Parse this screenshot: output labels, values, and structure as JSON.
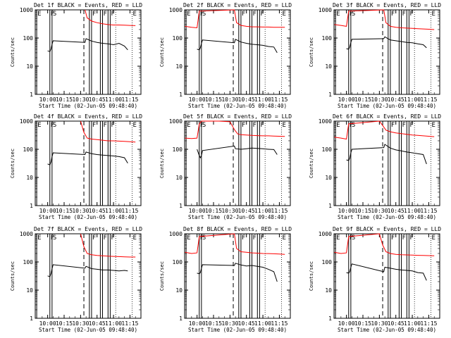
{
  "colors": {
    "background": "#ffffff",
    "axes": "#000000",
    "events": "#000000",
    "lld": "#ff0000"
  },
  "chart_data": [
    {
      "type": "line",
      "title": "Det 1f BLACK = Events, RED = LLD",
      "xlabel": "Start Time (02-Jun-05 09:48:40)",
      "ylabel": "Counts/sec",
      "x_tick_labels": [
        "10:00",
        "10:15",
        "10:30",
        "10:45",
        "11:00",
        "11:15"
      ],
      "y_tick_labels": [
        "1000",
        "100",
        "10",
        "1"
      ],
      "y_scale": "log",
      "ylim": [
        1,
        1000
      ],
      "xlim": [
        "09:48:40",
        "11:25"
      ],
      "series": [
        {
          "name": "Events",
          "x": [
            "10:00",
            "10:02",
            "10:03",
            "10:04",
            "10:05",
            "10:34",
            "10:35",
            "10:40",
            "10:45",
            "10:50",
            "10:55",
            "11:00",
            "11:05",
            "11:10",
            "11:13"
          ],
          "values": [
            35,
            33,
            40,
            60,
            80,
            70,
            95,
            78,
            70,
            65,
            62,
            58,
            65,
            52,
            38
          ]
        },
        {
          "name": "LLD",
          "x": [
            "10:34",
            "10:36",
            "10:40",
            "10:45",
            "10:50",
            "10:55",
            "11:00",
            "11:05",
            "11:10",
            "11:15",
            "11:20"
          ],
          "values": [
            1000,
            520,
            400,
            350,
            320,
            300,
            290,
            290,
            285,
            280,
            275
          ]
        }
      ],
      "markers": [
        "E",
        "F",
        "S",
        "F",
        "F",
        "F",
        "E"
      ]
    },
    {
      "type": "line",
      "title": "Det 2f BLACK = Events, RED = LLD",
      "xlabel": "Start Time (02-Jun-05 09:48:40)",
      "ylabel": "Counts/sec",
      "x_tick_labels": [
        "10:00",
        "10:15",
        "10:30",
        "10:45",
        "11:00",
        "11:15"
      ],
      "y_tick_labels": [
        "1000",
        "100",
        "10",
        "1"
      ],
      "y_scale": "log",
      "ylim": [
        1,
        1000
      ],
      "xlim": [
        "09:48:40",
        "11:25"
      ],
      "series": [
        {
          "name": "Events",
          "x": [
            "10:00",
            "10:02",
            "10:03",
            "10:04",
            "10:05",
            "10:34",
            "10:35",
            "10:40",
            "10:45",
            "10:50",
            "10:55",
            "11:00",
            "11:05",
            "11:10",
            "11:13"
          ],
          "values": [
            40,
            38,
            45,
            65,
            85,
            68,
            90,
            72,
            65,
            60,
            58,
            55,
            50,
            48,
            30
          ]
        },
        {
          "name": "LLD",
          "x": [
            "09:49",
            "09:55",
            "10:00",
            "10:02",
            "10:34",
            "10:36",
            "10:40",
            "10:45",
            "10:50",
            "10:55",
            "11:00",
            "11:05",
            "11:10",
            "11:15",
            "11:20"
          ],
          "values": [
            260,
            240,
            230,
            900,
            1000,
            350,
            280,
            260,
            250,
            250,
            245,
            245,
            240,
            240,
            240
          ]
        }
      ],
      "markers": [
        "E",
        "F",
        "S",
        "F",
        "F",
        "F",
        "E"
      ]
    },
    {
      "type": "line",
      "title": "Det 3f BLACK = Events, RED = LLD",
      "xlabel": "Start Time (02-Jun-05 09:48:40)",
      "ylabel": "Counts/sec",
      "x_tick_labels": [
        "10:00",
        "10:15",
        "10:30",
        "10:45",
        "11:00",
        "11:15"
      ],
      "y_tick_labels": [
        "1000",
        "100",
        "10",
        "1"
      ],
      "y_scale": "log",
      "ylim": [
        1,
        1000
      ],
      "xlim": [
        "09:48:40",
        "11:25"
      ],
      "series": [
        {
          "name": "Events",
          "x": [
            "10:00",
            "10:02",
            "10:03",
            "10:04",
            "10:05",
            "10:34",
            "10:35",
            "10:40",
            "10:45",
            "10:50",
            "10:55",
            "11:00",
            "11:05",
            "11:10",
            "11:13"
          ],
          "values": [
            42,
            40,
            48,
            70,
            90,
            95,
            110,
            85,
            80,
            75,
            70,
            68,
            62,
            58,
            45
          ]
        },
        {
          "name": "LLD",
          "x": [
            "09:49",
            "09:55",
            "10:00",
            "10:02",
            "10:34",
            "10:36",
            "10:40",
            "10:45",
            "10:50",
            "10:55",
            "11:00",
            "11:05",
            "11:10",
            "11:15",
            "11:20"
          ],
          "values": [
            300,
            280,
            260,
            900,
            1000,
            350,
            260,
            240,
            230,
            225,
            220,
            215,
            210,
            205,
            200
          ]
        }
      ],
      "markers": [
        "E",
        "F",
        "S",
        "F",
        "F",
        "F",
        "E"
      ]
    },
    {
      "type": "line",
      "title": "Det 4f BLACK = Events, RED = LLD",
      "xlabel": "Start Time (02-Jun-05 09:48:40)",
      "ylabel": "Counts/sec",
      "x_tick_labels": [
        "10:00",
        "10:15",
        "10:30",
        "10:45",
        "11:00",
        "11:15"
      ],
      "y_tick_labels": [
        "1000",
        "100",
        "10",
        "1"
      ],
      "y_scale": "log",
      "ylim": [
        1,
        1000
      ],
      "xlim": [
        "09:48:40",
        "11:25"
      ],
      "series": [
        {
          "name": "Events",
          "x": [
            "10:00",
            "10:02",
            "10:03",
            "10:04",
            "10:05",
            "10:34",
            "10:35",
            "10:40",
            "10:45",
            "10:50",
            "10:55",
            "11:00",
            "11:05",
            "11:10",
            "11:13"
          ],
          "values": [
            30,
            28,
            35,
            55,
            75,
            65,
            80,
            70,
            65,
            62,
            60,
            58,
            55,
            50,
            32
          ]
        },
        {
          "name": "LLD",
          "x": [
            "10:30",
            "10:33",
            "10:36",
            "10:40",
            "10:45",
            "10:50",
            "10:55",
            "11:00",
            "11:05",
            "11:10",
            "11:15",
            "11:20"
          ],
          "values": [
            1000,
            400,
            250,
            230,
            220,
            210,
            200,
            200,
            195,
            190,
            185,
            180
          ]
        }
      ],
      "markers": [
        "E",
        "F",
        "S",
        "F",
        "F",
        "F",
        "E"
      ]
    },
    {
      "type": "line",
      "title": "Det 5f BLACK = Events, RED = LLD",
      "xlabel": "Start Time (02-Jun-05 09:48:40)",
      "ylabel": "Counts/sec",
      "x_tick_labels": [
        "10:00",
        "10:15",
        "10:30",
        "10:45",
        "11:00",
        "11:15"
      ],
      "y_tick_labels": [
        "1000",
        "100",
        "10",
        "1"
      ],
      "y_scale": "log",
      "ylim": [
        1,
        1000
      ],
      "xlim": [
        "09:48:40",
        "11:25"
      ],
      "series": [
        {
          "name": "Events",
          "x": [
            "10:00",
            "10:02",
            "10:03",
            "10:04",
            "10:05",
            "10:34",
            "10:35",
            "10:40",
            "10:45",
            "10:50",
            "10:55",
            "11:00",
            "11:05",
            "11:10",
            "11:13"
          ],
          "values": [
            100,
            60,
            50,
            60,
            90,
            130,
            105,
            100,
            105,
            110,
            108,
            104,
            100,
            98,
            65
          ]
        },
        {
          "name": "LLD",
          "x": [
            "09:49",
            "09:55",
            "10:00",
            "10:02",
            "10:04",
            "10:10",
            "10:20",
            "10:30",
            "10:34",
            "10:37",
            "10:40",
            "10:45",
            "10:50",
            "10:55",
            "11:00",
            "11:05",
            "11:10",
            "11:15",
            "11:20"
          ],
          "values": [
            250,
            240,
            250,
            800,
            1000,
            1000,
            1000,
            950,
            500,
            350,
            330,
            320,
            310,
            305,
            300,
            300,
            295,
            290,
            285
          ]
        }
      ],
      "markers": [
        "E",
        "F",
        "S",
        "F",
        "F",
        "F",
        "E"
      ]
    },
    {
      "type": "line",
      "title": "Det 6f BLACK = Events, RED = LLD",
      "xlabel": "Start Time (02-Jun-05 09:48:40)",
      "ylabel": "Counts/sec",
      "x_tick_labels": [
        "10:00",
        "10:15",
        "10:30",
        "10:45",
        "11:00",
        "11:15"
      ],
      "y_tick_labels": [
        "1000",
        "100",
        "10",
        "1"
      ],
      "y_scale": "log",
      "ylim": [
        1,
        1000
      ],
      "xlim": [
        "09:48:40",
        "11:25"
      ],
      "series": [
        {
          "name": "Events",
          "x": [
            "10:00",
            "10:02",
            "10:03",
            "10:04",
            "10:05",
            "10:34",
            "10:35",
            "10:40",
            "10:45",
            "10:50",
            "10:55",
            "11:00",
            "11:05",
            "11:10",
            "11:13"
          ],
          "values": [
            42,
            40,
            48,
            75,
            100,
            115,
            150,
            110,
            95,
            88,
            80,
            75,
            70,
            65,
            30
          ]
        },
        {
          "name": "LLD",
          "x": [
            "09:49",
            "09:55",
            "10:00",
            "10:02",
            "10:30",
            "10:33",
            "10:36",
            "10:40",
            "10:45",
            "10:50",
            "10:55",
            "11:00",
            "11:05",
            "11:10",
            "11:15",
            "11:20"
          ],
          "values": [
            270,
            250,
            230,
            800,
            1000,
            700,
            480,
            420,
            380,
            360,
            340,
            320,
            310,
            300,
            290,
            280
          ]
        }
      ],
      "markers": [
        "E",
        "F",
        "S",
        "F",
        "F",
        "F",
        "E"
      ]
    },
    {
      "type": "line",
      "title": "Det 7f BLACK = Events, RED = LLD",
      "xlabel": "Start Time (02-Jun-05 09:48:40)",
      "ylabel": "Counts/sec",
      "x_tick_labels": [
        "10:00",
        "10:15",
        "10:30",
        "10:45",
        "11:00",
        "11:15"
      ],
      "y_tick_labels": [
        "1000",
        "100",
        "10",
        "1"
      ],
      "y_scale": "log",
      "ylim": [
        1,
        1000
      ],
      "xlim": [
        "09:48:40",
        "11:25"
      ],
      "series": [
        {
          "name": "Events",
          "x": [
            "10:00",
            "10:02",
            "10:03",
            "10:04",
            "10:05",
            "10:34",
            "10:35",
            "10:40",
            "10:45",
            "10:50",
            "10:55",
            "11:00",
            "11:05",
            "11:10",
            "11:13"
          ],
          "values": [
            32,
            30,
            38,
            58,
            80,
            60,
            70,
            58,
            55,
            52,
            52,
            50,
            48,
            50,
            48
          ]
        },
        {
          "name": "LLD",
          "x": [
            "10:30",
            "10:33",
            "10:36",
            "10:40",
            "10:45",
            "10:50",
            "10:55",
            "11:00",
            "11:05",
            "11:10",
            "11:15",
            "11:20"
          ],
          "values": [
            1000,
            350,
            200,
            180,
            170,
            165,
            160,
            158,
            155,
            152,
            150,
            150
          ]
        }
      ],
      "markers": [
        "E",
        "F",
        "S",
        "F",
        "F",
        "F",
        "E"
      ]
    },
    {
      "type": "line",
      "title": "Det 8f BLACK = Events, RED = LLD",
      "xlabel": "Start Time (02-Jun-05 09:48:40)",
      "ylabel": "Counts/sec",
      "x_tick_labels": [
        "10:00",
        "10:15",
        "10:30",
        "10:45",
        "11:00",
        "11:15"
      ],
      "y_tick_labels": [
        "1000",
        "100",
        "10",
        "1"
      ],
      "y_scale": "log",
      "ylim": [
        1,
        1000
      ],
      "xlim": [
        "09:48:40",
        "11:25"
      ],
      "series": [
        {
          "name": "Events",
          "x": [
            "10:00",
            "10:02",
            "10:03",
            "10:04",
            "10:05",
            "10:34",
            "10:35",
            "10:40",
            "10:45",
            "10:50",
            "10:55",
            "11:00",
            "11:05",
            "11:10",
            "11:13"
          ],
          "values": [
            40,
            38,
            42,
            60,
            80,
            75,
            90,
            78,
            72,
            75,
            70,
            65,
            55,
            45,
            20
          ]
        },
        {
          "name": "LLD",
          "x": [
            "09:49",
            "09:55",
            "10:00",
            "10:02",
            "10:34",
            "10:36",
            "10:40",
            "10:45",
            "10:50",
            "10:55",
            "11:00",
            "11:05",
            "11:10",
            "11:15",
            "11:20"
          ],
          "values": [
            220,
            200,
            210,
            800,
            1000,
            300,
            230,
            220,
            210,
            205,
            200,
            198,
            195,
            190,
            185
          ]
        }
      ],
      "markers": [
        "E",
        "F",
        "S",
        "F",
        "F",
        "F",
        "E"
      ]
    },
    {
      "type": "line",
      "title": "Det 9f BLACK = Events, RED = LLD",
      "xlabel": "Start Time (02-Jun-05 09:48:40)",
      "ylabel": "Counts/sec",
      "x_tick_labels": [
        "10:00",
        "10:15",
        "10:30",
        "10:45",
        "11:00",
        "11:15"
      ],
      "y_tick_labels": [
        "1000",
        "100",
        "10",
        "1"
      ],
      "y_scale": "log",
      "ylim": [
        1,
        1000
      ],
      "xlim": [
        "09:48:40",
        "11:25"
      ],
      "series": [
        {
          "name": "Events",
          "x": [
            "10:00",
            "10:02",
            "10:03",
            "10:04",
            "10:05",
            "10:34",
            "10:35",
            "10:40",
            "10:45",
            "10:50",
            "10:55",
            "11:00",
            "11:05",
            "11:10",
            "11:13"
          ],
          "values": [
            42,
            40,
            45,
            65,
            85,
            45,
            65,
            60,
            55,
            52,
            50,
            48,
            42,
            40,
            22
          ]
        },
        {
          "name": "LLD",
          "x": [
            "09:49",
            "09:55",
            "10:00",
            "10:02",
            "10:30",
            "10:33",
            "10:36",
            "10:40",
            "10:45",
            "10:50",
            "10:55",
            "11:00",
            "11:05",
            "11:10",
            "11:15",
            "11:20"
          ],
          "values": [
            220,
            200,
            210,
            800,
            1000,
            400,
            230,
            200,
            185,
            180,
            178,
            175,
            172,
            170,
            168,
            165
          ]
        }
      ],
      "markers": [
        "E",
        "F",
        "S",
        "F",
        "F",
        "F",
        "E"
      ]
    }
  ]
}
